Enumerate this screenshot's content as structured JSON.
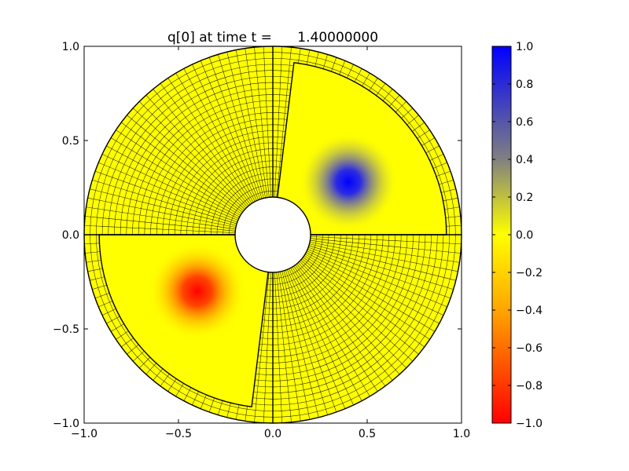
{
  "chart_data": {
    "type": "heatmap",
    "title": "q[0] at time t =      1.40000000",
    "xlim": [
      -1.0,
      1.0
    ],
    "ylim": [
      -1.0,
      1.0
    ],
    "x_ticks": [
      -1.0,
      -0.5,
      0.0,
      0.5,
      1.0
    ],
    "x_tick_labels": [
      "−1.0",
      "−0.5",
      "0.0",
      "0.5",
      "1.0"
    ],
    "y_ticks": [
      -1.0,
      -0.5,
      0.0,
      0.5,
      1.0
    ],
    "y_tick_labels": [
      "−1.0",
      "−0.5",
      "0.0",
      "0.5",
      "1.0"
    ],
    "geometry": {
      "inner_radius": 0.2,
      "outer_radius": 1.0,
      "patch_boundary_radius": 0.92,
      "refined_patches": [
        {
          "theta_deg": [
            0,
            83
          ],
          "r": [
            0.2,
            0.92
          ]
        },
        {
          "theta_deg": [
            180,
            263
          ],
          "r": [
            0.2,
            0.92
          ]
        }
      ]
    },
    "blobs": [
      {
        "center": [
          0.4,
          0.28
        ],
        "value": 1.0,
        "sigma": 0.1
      },
      {
        "center": [
          -0.4,
          -0.3
        ],
        "value": -1.0,
        "sigma": 0.1
      }
    ],
    "colorbar": {
      "range": [
        -1.0,
        1.0
      ],
      "ticks": [
        1.0,
        0.8,
        0.6,
        0.4,
        0.2,
        0.0,
        -0.2,
        -0.4,
        -0.6,
        -0.8,
        -1.0
      ],
      "tick_labels": [
        "1.0",
        "0.8",
        "0.6",
        "0.4",
        "0.2",
        "0.0",
        "−0.2",
        "−0.4",
        "−0.6",
        "−0.8",
        "−1.0"
      ],
      "colors": {
        "max": "#0000ff",
        "mid_high": "#808080",
        "zero": "#ffff00",
        "mid_low": "#ffa500",
        "min": "#ff0000"
      }
    }
  }
}
